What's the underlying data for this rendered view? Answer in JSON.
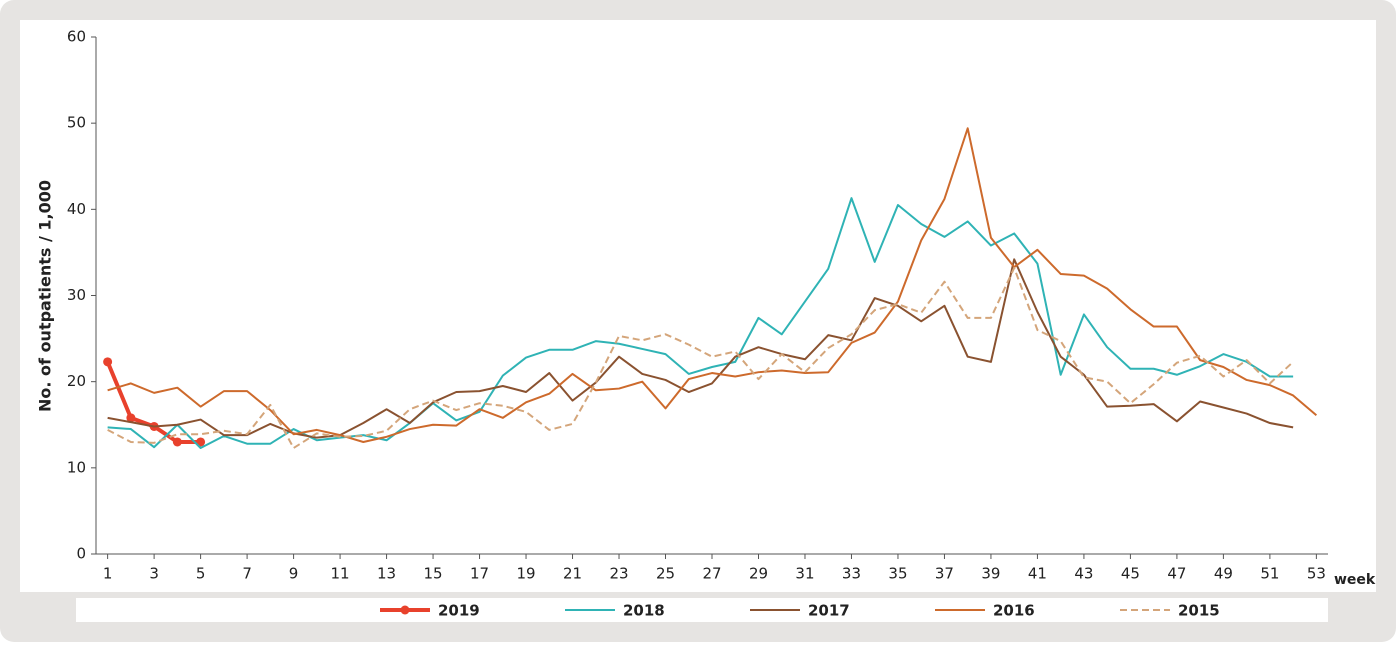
{
  "chart_data": {
    "type": "line",
    "y_label": "No. of outpatients / 1,000",
    "x_label": "week",
    "x": [
      1,
      2,
      3,
      4,
      5,
      6,
      7,
      8,
      9,
      10,
      11,
      12,
      13,
      14,
      15,
      16,
      17,
      18,
      19,
      20,
      21,
      22,
      23,
      24,
      25,
      26,
      27,
      28,
      29,
      30,
      31,
      32,
      33,
      34,
      35,
      36,
      37,
      38,
      39,
      40,
      41,
      42,
      43,
      44,
      45,
      46,
      47,
      48,
      49,
      50,
      51,
      52,
      53
    ],
    "xlim": [
      0.5,
      53.5
    ],
    "xticks": [
      1,
      3,
      5,
      7,
      9,
      11,
      13,
      15,
      17,
      19,
      21,
      23,
      25,
      27,
      29,
      31,
      33,
      35,
      37,
      39,
      41,
      43,
      45,
      47,
      49,
      51,
      53
    ],
    "ylim": [
      0,
      60
    ],
    "yticks": [
      0,
      10,
      20,
      30,
      40,
      50,
      60
    ],
    "series": [
      {
        "name": "2019",
        "color": "#e8412c",
        "markers": true,
        "values": [
          22.3,
          15.8,
          14.8,
          13.0,
          13.0,
          null,
          null,
          null,
          null,
          null,
          null,
          null,
          null,
          null,
          null,
          null,
          null,
          null,
          null,
          null,
          null,
          null,
          null,
          null,
          null,
          null,
          null,
          null,
          null,
          null,
          null,
          null,
          null,
          null,
          null,
          null,
          null,
          null,
          null,
          null,
          null,
          null,
          null,
          null,
          null,
          null,
          null,
          null,
          null,
          null,
          null,
          null,
          null
        ]
      },
      {
        "name": "2018",
        "color": "#2fb3b5",
        "values": [
          14.7,
          14.5,
          12.4,
          15.0,
          12.3,
          13.7,
          12.8,
          12.8,
          14.5,
          13.2,
          13.5,
          13.8,
          13.2,
          15.2,
          17.5,
          15.5,
          16.5,
          20.7,
          22.8,
          23.7,
          23.7,
          24.7,
          24.4,
          23.8,
          23.2,
          20.9,
          21.7,
          22.3,
          27.4,
          25.5,
          29.3,
          33.1,
          41.3,
          33.9,
          40.5,
          38.3,
          36.8,
          38.6,
          35.8,
          37.2,
          33.7,
          20.8,
          27.8,
          24.0,
          21.5,
          21.5,
          20.8,
          21.8,
          23.2,
          22.3,
          20.6,
          20.6,
          null
        ]
      },
      {
        "name": "2017",
        "color": "#8a5230",
        "values": [
          15.8,
          15.3,
          14.8,
          15.0,
          15.6,
          13.8,
          13.8,
          15.1,
          14.0,
          13.5,
          13.8,
          15.2,
          16.8,
          15.2,
          17.6,
          18.8,
          18.9,
          19.5,
          18.8,
          21.0,
          17.8,
          19.9,
          22.9,
          20.9,
          20.2,
          18.8,
          19.8,
          22.9,
          24.0,
          23.2,
          22.6,
          25.4,
          24.8,
          29.7,
          28.8,
          27.0,
          28.8,
          22.9,
          22.3,
          34.2,
          28.1,
          22.9,
          20.8,
          17.1,
          17.2,
          17.4,
          15.4,
          17.7,
          17.0,
          16.3,
          15.2,
          14.7,
          null
        ]
      },
      {
        "name": "2016",
        "color": "#cd6a2c",
        "values": [
          19.0,
          19.8,
          18.7,
          19.3,
          17.1,
          18.9,
          18.9,
          16.7,
          13.9,
          14.4,
          13.8,
          13.0,
          13.6,
          14.5,
          15.0,
          14.9,
          16.8,
          15.8,
          17.6,
          18.6,
          20.9,
          19.0,
          19.2,
          20.0,
          16.9,
          20.3,
          21.0,
          20.6,
          21.1,
          21.3,
          21.0,
          21.1,
          24.5,
          25.7,
          29.3,
          36.4,
          41.2,
          49.4,
          36.7,
          33.3,
          35.3,
          32.5,
          32.3,
          30.8,
          28.4,
          26.4,
          26.4,
          22.5,
          21.7,
          20.2,
          19.6,
          18.4,
          16.1
        ]
      },
      {
        "name": "2015",
        "color": "#d4a57a",
        "dashed": true,
        "values": [
          14.4,
          13.0,
          12.9,
          13.9,
          13.9,
          14.3,
          13.9,
          17.3,
          12.3,
          14.0,
          13.6,
          13.7,
          14.3,
          16.8,
          17.8,
          16.7,
          17.5,
          17.2,
          16.5,
          14.4,
          15.1,
          19.9,
          25.3,
          24.8,
          25.5,
          24.3,
          22.9,
          23.5,
          20.3,
          23.2,
          21.1,
          23.9,
          25.5,
          28.3,
          29.0,
          28.0,
          31.6,
          27.4,
          27.4,
          33.2,
          26.0,
          24.7,
          20.5,
          20.0,
          17.5,
          19.7,
          22.2,
          23.0,
          20.6,
          22.5,
          19.8,
          22.3,
          null
        ]
      }
    ]
  }
}
